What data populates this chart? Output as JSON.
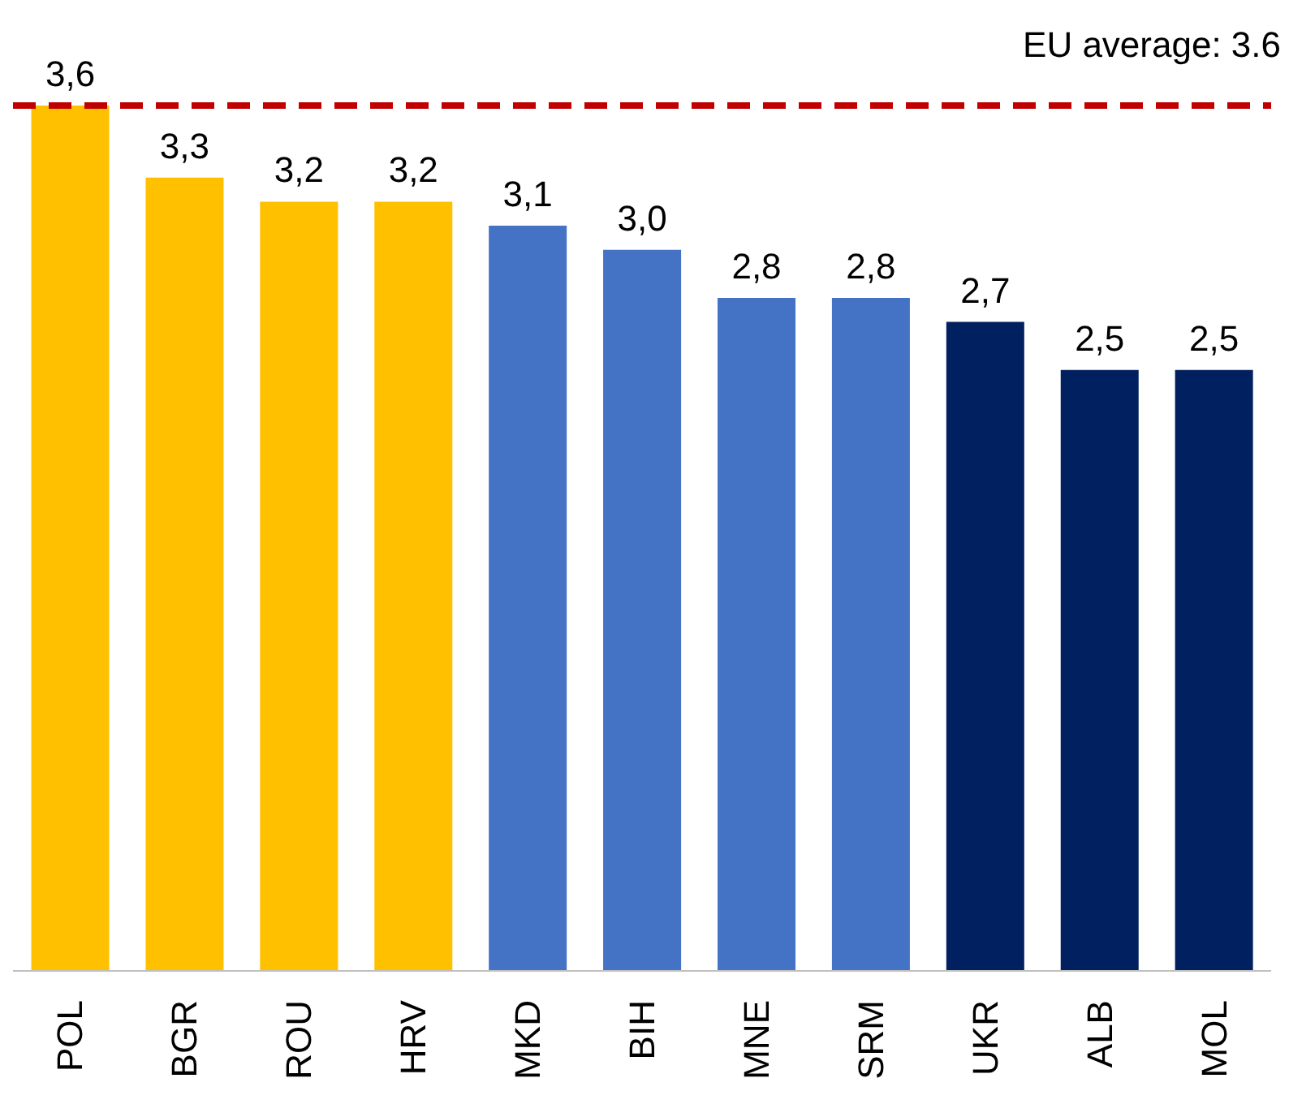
{
  "chart_data": {
    "type": "bar",
    "categories": [
      "POL",
      "BGR",
      "ROU",
      "HRV",
      "MKD",
      "BIH",
      "MNE",
      "SRM",
      "UKR",
      "ALB",
      "MOL"
    ],
    "values": [
      3.6,
      3.3,
      3.2,
      3.2,
      3.1,
      3.0,
      2.8,
      2.8,
      2.7,
      2.5,
      2.5
    ],
    "colors": [
      "#ffc000",
      "#ffc000",
      "#ffc000",
      "#ffc000",
      "#4472c4",
      "#4472c4",
      "#4472c4",
      "#4472c4",
      "#002060",
      "#002060",
      "#002060"
    ],
    "value_labels": [
      "3,6",
      "3,3",
      "3,2",
      "3,2",
      "3,1",
      "3,0",
      "2,8",
      "2,8",
      "2,7",
      "2,5",
      "2,5"
    ],
    "ref_lines": [
      {
        "axis": "y",
        "value": 3.6,
        "label": "EU average: 3.6",
        "color": "#c00000",
        "line_style": "dashed"
      }
    ],
    "grid": false
  }
}
